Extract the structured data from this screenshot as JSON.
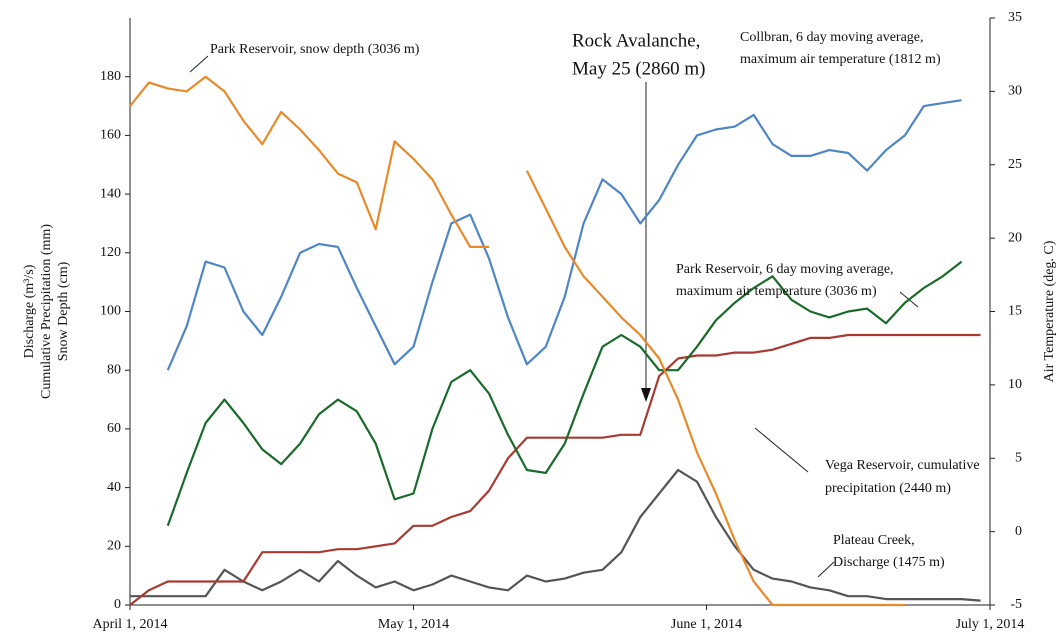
{
  "chart_data": {
    "type": "line",
    "x": [
      "2014-04-01",
      "2014-04-03",
      "2014-04-05",
      "2014-04-07",
      "2014-04-09",
      "2014-04-11",
      "2014-04-13",
      "2014-04-15",
      "2014-04-17",
      "2014-04-19",
      "2014-04-21",
      "2014-04-23",
      "2014-04-25",
      "2014-04-27",
      "2014-04-29",
      "2014-05-01",
      "2014-05-03",
      "2014-05-05",
      "2014-05-07",
      "2014-05-09",
      "2014-05-11",
      "2014-05-13",
      "2014-05-15",
      "2014-05-17",
      "2014-05-19",
      "2014-05-21",
      "2014-05-23",
      "2014-05-25",
      "2014-05-27",
      "2014-05-29",
      "2014-05-31",
      "2014-06-02",
      "2014-06-04",
      "2014-06-06",
      "2014-06-08",
      "2014-06-10",
      "2014-06-12",
      "2014-06-14",
      "2014-06-16",
      "2014-06-18",
      "2014-06-20",
      "2014-06-22",
      "2014-06-24",
      "2014-06-26",
      "2014-06-28",
      "2014-06-30"
    ],
    "xlim": [
      "2014-04-01",
      "2014-07-01"
    ],
    "xticks": [
      {
        "value": "2014-04-01",
        "label": "April 1, 2014"
      },
      {
        "value": "2014-05-01",
        "label": "May 1, 2014"
      },
      {
        "value": "2014-06-01",
        "label": "June 1, 2014"
      },
      {
        "value": "2014-07-01",
        "label": "July 1, 2014"
      }
    ],
    "ylim": [
      0,
      200
    ],
    "yticks": [
      0,
      20,
      40,
      60,
      80,
      100,
      120,
      140,
      160,
      180
    ],
    "y2lim": [
      -5,
      35
    ],
    "y2ticks": [
      -5,
      0,
      5,
      10,
      15,
      20,
      25,
      30,
      35
    ],
    "ylabel": [
      "Discharge (m³/s)",
      "Cumulative Precipitation (mm)",
      "Snow Depth (cm)"
    ],
    "y2label": "Air Temperature (deg. C)",
    "series": [
      {
        "name": "Plateau Creek, Discharge (1475 m)",
        "color": "#555555",
        "values": [
          3,
          3,
          3,
          3,
          3,
          12,
          8,
          5,
          8,
          12,
          8,
          15,
          10,
          6,
          8,
          5,
          7,
          10,
          8,
          6,
          5,
          10,
          8,
          9,
          11,
          12,
          18,
          30,
          38,
          46,
          42,
          30,
          20,
          12,
          9,
          8,
          6,
          5,
          3,
          3,
          2,
          2,
          2,
          2,
          2,
          1.5
        ]
      },
      {
        "name": "Vega Reservoir, cumulative precipitation (2440 m)",
        "color": "#a83a32",
        "values": [
          0,
          5,
          8,
          8,
          8,
          8,
          8,
          18,
          18,
          18,
          18,
          19,
          19,
          20,
          21,
          27,
          27,
          30,
          32,
          39,
          50,
          57,
          57,
          57,
          57,
          57,
          58,
          58,
          78,
          84,
          85,
          85,
          86,
          86,
          87,
          89,
          91,
          91,
          92,
          92,
          92,
          92,
          92,
          92,
          92,
          92
        ]
      },
      {
        "name": "Park Reservoir, 6 day moving average, maximum air temperature (3036 m)",
        "color": "#1a6b2a",
        "axis": "y2",
        "values": [
          null,
          null,
          0.4,
          4,
          7.4,
          9,
          7.4,
          5.6,
          4.6,
          6,
          8,
          9,
          8.2,
          6,
          2.2,
          2.6,
          7,
          10.2,
          11,
          9.4,
          6.6,
          4.2,
          4,
          6,
          9.4,
          12.6,
          13.4,
          12.6,
          11,
          11,
          12.6,
          14.4,
          15.6,
          16.6,
          17.4,
          15.8,
          15,
          14.6,
          15,
          15.2,
          14.2,
          15.6,
          16.6,
          17.4,
          18.4,
          null
        ]
      },
      {
        "name": "Collbran, 6 day moving average, maximum air temperature (1812 m)",
        "color": "#4f86c6",
        "axis": "y2",
        "values": [
          null,
          null,
          11,
          14,
          18.4,
          18,
          15,
          13.4,
          16,
          19,
          19.6,
          19.4,
          16.6,
          14,
          11.4,
          12.6,
          17,
          21,
          21.6,
          18.6,
          14.6,
          11.4,
          12.6,
          16,
          21,
          24,
          23,
          21,
          22.6,
          25,
          27,
          27.4,
          27.6,
          28.4,
          26.4,
          25.6,
          25.6,
          26,
          25.8,
          24.6,
          26,
          27,
          29,
          29.2,
          29.4,
          null
        ]
      },
      {
        "name": "Park Reservoir, snow depth (3036 m)",
        "color": "#e88a2a",
        "values": [
          170,
          178,
          176,
          175,
          180,
          175,
          165,
          157,
          168,
          162,
          155,
          147,
          144,
          128,
          158,
          152,
          145,
          133,
          122,
          122,
          null,
          148,
          135,
          122,
          112,
          105,
          98,
          92,
          84,
          70,
          52,
          38,
          22,
          8,
          0,
          0,
          0,
          0,
          0,
          0,
          0,
          0,
          null,
          null,
          null,
          null
        ]
      }
    ],
    "annotations": [
      {
        "lines": [
          "Park Reservoir, snow depth (3036 m)"
        ]
      },
      {
        "lines": [
          "Rock Avalanche,",
          "May 25 (2860 m)"
        ]
      },
      {
        "lines": [
          "Collbran, 6 day moving average,",
          "maximum air temperature (1812 m)"
        ]
      },
      {
        "lines": [
          "Park Reservoir, 6 day moving average,",
          "maximum air temperature (3036 m)"
        ]
      },
      {
        "lines": [
          "Vega Reservoir, cumulative",
          "precipitation (2440 m)"
        ]
      },
      {
        "lines": [
          "Plateau Creek,",
          "Discharge (1475 m)"
        ]
      }
    ]
  }
}
